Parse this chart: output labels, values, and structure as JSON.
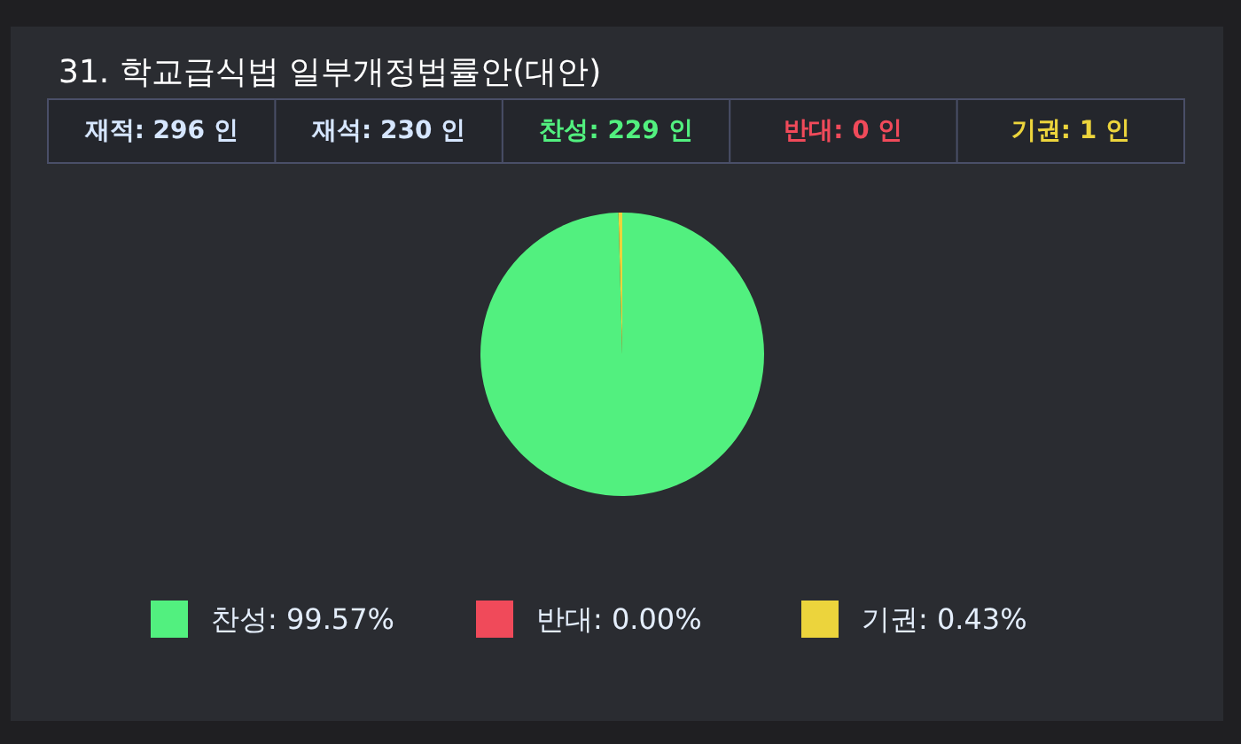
{
  "chart_data": {
    "type": "pie",
    "title": "31. 학교급식법 일부개정법률안(대안)",
    "annotations": [
      "재적: 296 인",
      "재석: 230 인",
      "찬성: 229 인",
      "반대: 0 인",
      "기권: 1 인"
    ],
    "categories": [
      "찬성: 99.57%",
      "반대: 0.00%",
      "기권: 0.43%"
    ],
    "values": [
      99.57,
      0,
      0.43
    ],
    "colors": [
      "#52f07f",
      "#f04a5a",
      "#ecd43c"
    ],
    "legend": "bottom"
  }
}
